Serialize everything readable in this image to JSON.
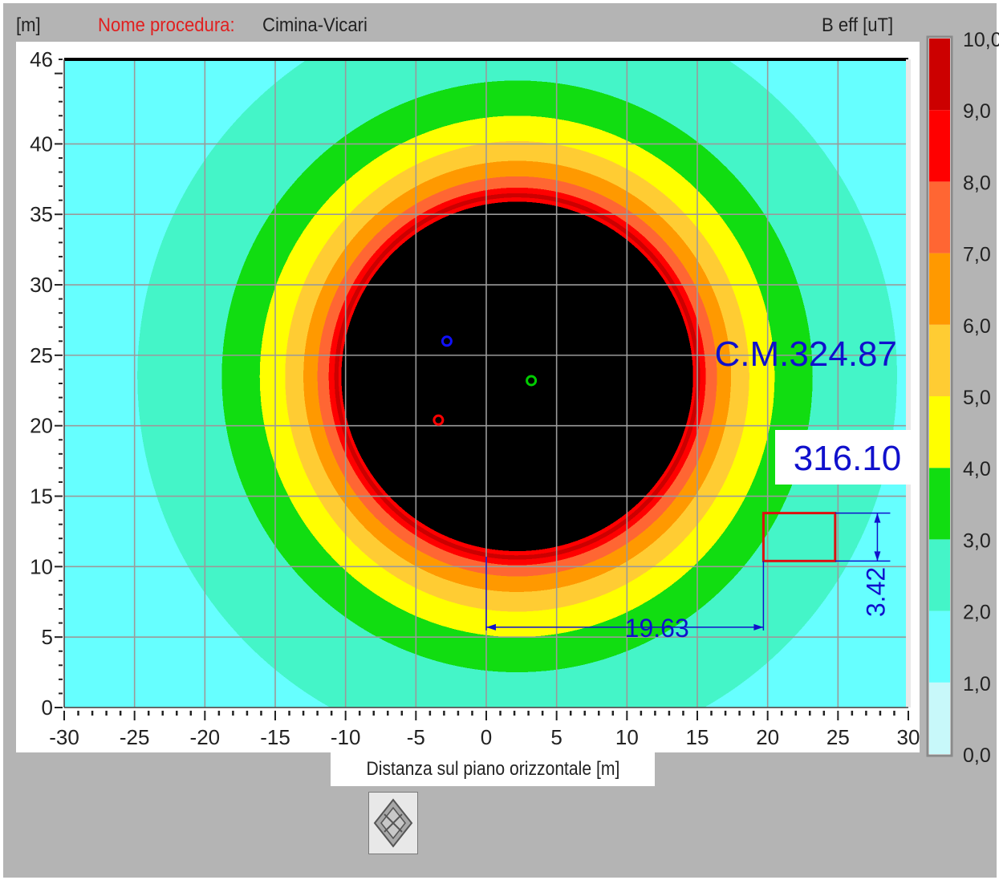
{
  "header": {
    "y_unit": "[m]",
    "procedure_label": "Nome procedura:",
    "procedure_name": "Cimina-Vicari",
    "field_label": "B eff [uT]"
  },
  "chart_data": {
    "type": "heatmap",
    "title": "",
    "xlabel": "Distanza sul piano orizzontale [m]",
    "ylabel": "[m]",
    "xlim": [
      -30,
      30
    ],
    "ylim": [
      0,
      46
    ],
    "x_ticks": [
      "-30",
      "-25",
      "-20",
      "-15",
      "-10",
      "-5",
      "0",
      "5",
      "10",
      "15",
      "20",
      "25",
      "30"
    ],
    "y_ticks": [
      "0",
      "5",
      "10",
      "15",
      "20",
      "25",
      "30",
      "35",
      "40",
      "46"
    ],
    "grid": true,
    "field_center": [
      2.2,
      23.5
    ],
    "contour_radii_m": [
      {
        "level": 1.0,
        "rx": 27.0,
        "ry": 27.0
      },
      {
        "level": 2.0,
        "rx": 21.0,
        "ry": 21.0
      },
      {
        "level": 3.0,
        "rx": 18.3,
        "ry": 18.5
      },
      {
        "level": 4.0,
        "rx": 16.5,
        "ry": 16.7
      },
      {
        "level": 5.0,
        "rx": 15.2,
        "ry": 15.3
      },
      {
        "level": 6.0,
        "rx": 14.2,
        "ry": 14.2
      },
      {
        "level": 7.0,
        "rx": 13.4,
        "ry": 13.4
      },
      {
        "level": 8.0,
        "rx": 13.0,
        "ry": 13.0
      },
      {
        "level": 9.0,
        "rx": 12.7,
        "ry": 12.7
      },
      {
        "level": 10.0,
        "rx": 12.5,
        "ry": 12.4
      }
    ],
    "conductors": [
      {
        "x": -2.8,
        "y": 26.0,
        "color": "#1010ff"
      },
      {
        "x": 3.2,
        "y": 23.2,
        "color": "#00cc00"
      },
      {
        "x": -3.4,
        "y": 20.4,
        "color": "#ff0000"
      }
    ],
    "annotations": {
      "cm_label": "C.M.324.87",
      "value_box": "316.10",
      "horizontal_distance": "19.63",
      "vertical_distance": "3.42",
      "highlight_rect": {
        "x0": 19.7,
        "x1": 24.8,
        "y0": 10.4,
        "y1": 13.8
      },
      "dim_h": {
        "x0": 0,
        "x1": 19.7,
        "y": 5.7
      },
      "dim_v": {
        "x": 27.8,
        "y0": 10.4,
        "y1": 13.8
      }
    },
    "colorbar": {
      "title": "B eff [uT]",
      "labels": [
        "10,0",
        "9,0",
        "8,0",
        "7,0",
        "6,0",
        "5,0",
        "4,0",
        "3,0",
        "2,0",
        "1,0",
        "0,0"
      ],
      "bands": [
        {
          "from": 0.0,
          "to": 1.0,
          "color": "#c8f8fa"
        },
        {
          "from": 1.0,
          "to": 2.0,
          "color": "#66ffff"
        },
        {
          "from": 2.0,
          "to": 3.0,
          "color": "#44f5c8"
        },
        {
          "from": 3.0,
          "to": 4.0,
          "color": "#11dd11"
        },
        {
          "from": 4.0,
          "to": 5.0,
          "color": "#ffff00"
        },
        {
          "from": 5.0,
          "to": 6.0,
          "color": "#ffcc33"
        },
        {
          "from": 6.0,
          "to": 7.0,
          "color": "#ff9900"
        },
        {
          "from": 7.0,
          "to": 8.0,
          "color": "#ff6633"
        },
        {
          "from": 8.0,
          "to": 9.0,
          "color": "#ff0000"
        },
        {
          "from": 9.0,
          "to": 10.0,
          "color": "#cc0000"
        }
      ],
      "above_max_color": "#000000"
    }
  },
  "nav_button": {
    "icon": "zoom-pan-icon"
  }
}
